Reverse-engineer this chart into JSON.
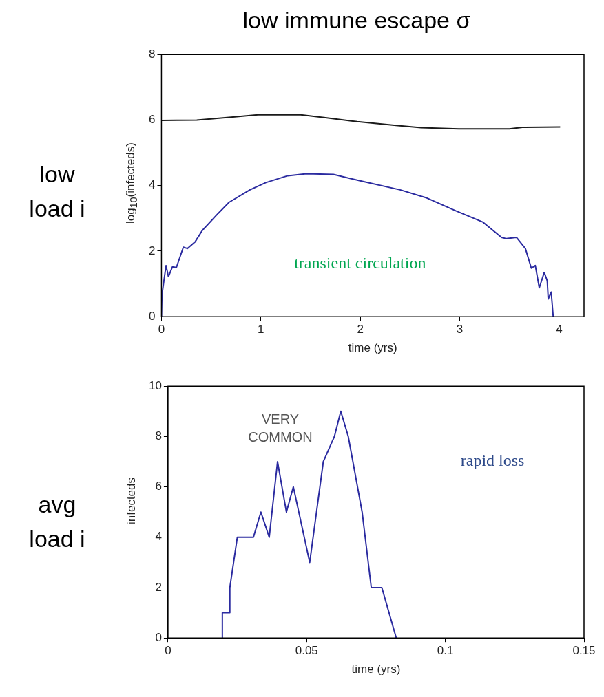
{
  "chart_data": [
    {
      "type": "line",
      "title": "low immune escape σ",
      "xlabel": "time (yrs)",
      "ylabel": "log$_{10}$(infecteds)",
      "xlim": [
        0,
        4.25
      ],
      "xticks": [
        0,
        1,
        2,
        3,
        4
      ],
      "ylim": [
        0,
        8
      ],
      "yticks": [
        0,
        2,
        4,
        6,
        8
      ],
      "grid": false,
      "legend": false,
      "marker": "none",
      "line_style": "solid",
      "annotations": [
        "low load i",
        "transient circulation"
      ],
      "series": [
        {
          "color": "#1a1a1a",
          "x": [
            0,
            0.355,
            0.7,
            0.97,
            1.4,
            1.65,
            1.97,
            2.34,
            2.61,
            2.99,
            3.5,
            3.63,
            4.01
          ],
          "values": [
            5.99,
            6.0,
            6.09,
            6.16,
            6.16,
            6.07,
            5.95,
            5.84,
            5.77,
            5.73,
            5.73,
            5.78,
            5.79
          ]
        },
        {
          "color": "#2b2ba0",
          "x": [
            0,
            0.005,
            0.046,
            0.07,
            0.11,
            0.15,
            0.22,
            0.26,
            0.34,
            0.41,
            0.57,
            0.68,
            0.89,
            1.05,
            1.27,
            1.46,
            1.73,
            2.02,
            2.4,
            2.67,
            2.96,
            3.23,
            3.42,
            3.47,
            3.57,
            3.66,
            3.72,
            3.76,
            3.8,
            3.85,
            3.88,
            3.89,
            3.92,
            3.94
          ],
          "values": [
            0,
            0.67,
            1.56,
            1.22,
            1.52,
            1.5,
            2.12,
            2.08,
            2.29,
            2.63,
            3.15,
            3.49,
            3.87,
            4.09,
            4.3,
            4.36,
            4.34,
            4.13,
            3.87,
            3.62,
            3.23,
            2.89,
            2.42,
            2.38,
            2.42,
            2.08,
            1.48,
            1.56,
            0.88,
            1.35,
            1.09,
            0.54,
            0.75,
            0
          ]
        }
      ]
    },
    {
      "type": "line",
      "xlabel": "time (yrs)",
      "ylabel": "infecteds",
      "xlim": [
        0,
        0.15
      ],
      "xticks": [
        0,
        0.05,
        0.1,
        0.15
      ],
      "ylim": [
        0,
        10
      ],
      "yticks": [
        0,
        2,
        4,
        6,
        8,
        10
      ],
      "grid": false,
      "legend": false,
      "marker": "none",
      "line_style": "solid",
      "annotations": [
        "avg load i",
        "VERY\nCOMMON",
        "rapid loss"
      ],
      "series": [
        {
          "color": "#2b2ba0",
          "x": [
            0.0196,
            0.0196,
            0.0223,
            0.0223,
            0.025,
            0.0308,
            0.0335,
            0.0365,
            0.0395,
            0.0427,
            0.0452,
            0.0511,
            0.056,
            0.06,
            0.0623,
            0.065,
            0.07,
            0.0733,
            0.0771,
            0.0823
          ],
          "values": [
            0,
            1,
            1,
            2,
            4,
            4,
            5,
            4,
            7,
            5,
            6,
            3,
            7,
            8,
            9,
            8,
            5,
            2,
            2,
            0
          ]
        }
      ]
    }
  ]
}
